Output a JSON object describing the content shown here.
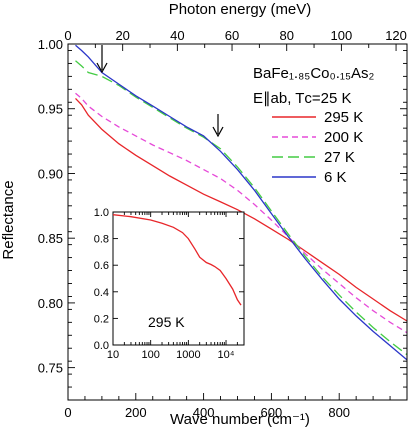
{
  "chart_data": [
    {
      "type": "line",
      "xlabel": "Wave number (cm⁻¹)",
      "ylabel": "Reflectance",
      "top_xlabel": "Photon energy (meV)",
      "xlim": [
        0,
        1000
      ],
      "ylim": [
        0.725,
        1.0
      ],
      "top_xlim": [
        0,
        124
      ],
      "x_ticks": [
        "0",
        "200",
        "400",
        "600",
        "800"
      ],
      "y_ticks": [
        "0.75",
        "0.80",
        "0.85",
        "0.90",
        "0.95",
        "1.00"
      ],
      "top_ticks": [
        "0",
        "20",
        "40",
        "60",
        "80",
        "100",
        "120"
      ],
      "grid": false,
      "legend_position": "right",
      "sample_label": "BaFe₁.₈₅Co₀.₁₅As₂",
      "condition_label": "E∥ab, Tᴄ=25 K",
      "annotations": [
        {
          "type": "arrow",
          "x": 100,
          "y": 0.977
        },
        {
          "type": "arrow",
          "x": 450,
          "y": 0.925
        }
      ],
      "series": [
        {
          "name": "295 K",
          "color": "#e8262a",
          "dash": "",
          "x": [
            22,
            40,
            60,
            100,
            150,
            200,
            250,
            300,
            350,
            400,
            450,
            500,
            550,
            600,
            650,
            700,
            750,
            800,
            850,
            900,
            950,
            1000
          ],
          "y": [
            0.958,
            0.953,
            0.945,
            0.934,
            0.923,
            0.914,
            0.906,
            0.898,
            0.891,
            0.884,
            0.878,
            0.872,
            0.865,
            0.857,
            0.849,
            0.84,
            0.831,
            0.822,
            0.812,
            0.803,
            0.794,
            0.786
          ]
        },
        {
          "name": "200 K",
          "color": "#e64ad8",
          "dash": "6,4",
          "x": [
            22,
            40,
            60,
            100,
            150,
            200,
            250,
            300,
            350,
            400,
            450,
            500,
            550,
            600,
            650,
            700,
            750,
            800,
            850,
            900,
            950,
            1000
          ],
          "y": [
            0.962,
            0.958,
            0.952,
            0.944,
            0.936,
            0.929,
            0.922,
            0.916,
            0.91,
            0.903,
            0.896,
            0.887,
            0.876,
            0.864,
            0.851,
            0.838,
            0.826,
            0.815,
            0.804,
            0.794,
            0.785,
            0.777
          ]
        },
        {
          "name": "27 K",
          "color": "#44cc44",
          "dash": "11,5",
          "x": [
            22,
            40,
            60,
            100,
            150,
            200,
            250,
            300,
            350,
            400,
            450,
            500,
            550,
            600,
            650,
            700,
            750,
            800,
            850,
            900,
            950,
            1000
          ],
          "y": [
            0.987,
            0.983,
            0.978,
            0.975,
            0.968,
            0.959,
            0.951,
            0.943,
            0.935,
            0.928,
            0.919,
            0.905,
            0.889,
            0.871,
            0.853,
            0.836,
            0.82,
            0.806,
            0.793,
            0.781,
            0.77,
            0.76
          ]
        },
        {
          "name": "6 K",
          "color": "#2b36c9",
          "dash": "",
          "x": [
            22,
            40,
            60,
            100,
            150,
            200,
            250,
            300,
            350,
            400,
            450,
            500,
            550,
            600,
            650,
            700,
            750,
            800,
            850,
            900,
            950,
            1000
          ],
          "y": [
            0.999,
            0.995,
            0.99,
            0.978,
            0.969,
            0.96,
            0.952,
            0.944,
            0.936,
            0.929,
            0.917,
            0.903,
            0.887,
            0.869,
            0.851,
            0.834,
            0.818,
            0.803,
            0.79,
            0.778,
            0.767,
            0.756
          ]
        }
      ]
    },
    {
      "type": "line",
      "xscale": "log",
      "xlim": [
        10,
        30000
      ],
      "ylim": [
        0.0,
        1.0
      ],
      "x_ticks": [
        "10",
        "100",
        "1000",
        "10⁴"
      ],
      "y_ticks": [
        "0.0",
        "0.2",
        "0.4",
        "0.6",
        "0.8",
        "1.0"
      ],
      "annotation": "295 K",
      "series": [
        {
          "name": "",
          "color": "#e8262a",
          "x": [
            10,
            30,
            100,
            200,
            400,
            700,
            1000,
            1500,
            2000,
            3000,
            4000,
            5000,
            7000,
            10000,
            15000,
            20000,
            25000
          ],
          "y": [
            0.98,
            0.965,
            0.94,
            0.915,
            0.885,
            0.845,
            0.8,
            0.72,
            0.66,
            0.62,
            0.605,
            0.59,
            0.56,
            0.5,
            0.42,
            0.34,
            0.3
          ]
        }
      ]
    }
  ]
}
